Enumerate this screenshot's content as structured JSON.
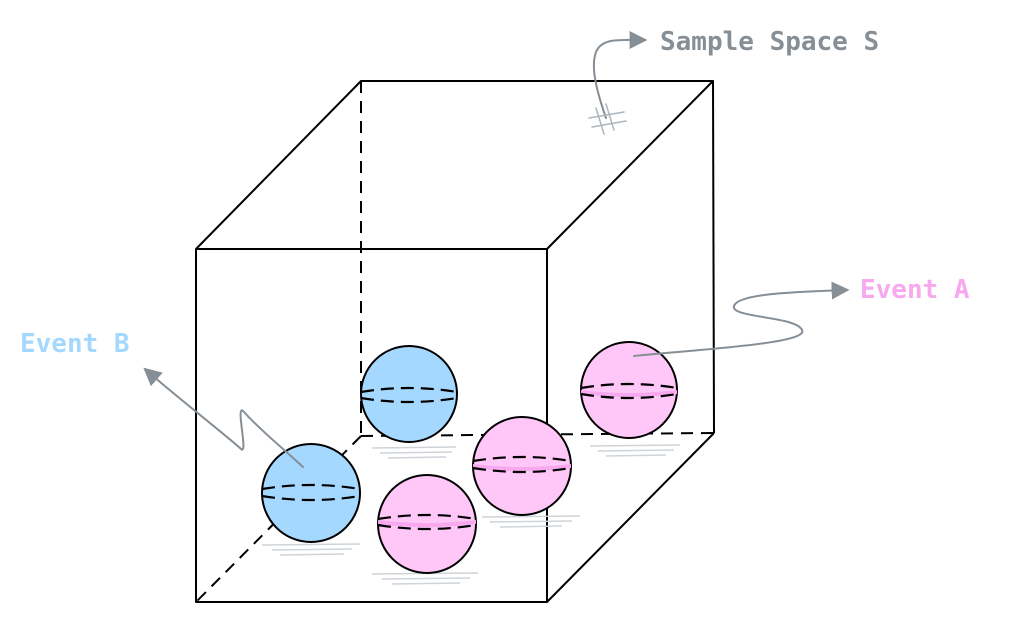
{
  "labels": {
    "sample_space": "Sample Space S",
    "event_a": "Event A",
    "event_b": "Event B"
  },
  "colors": {
    "event_a": "#f7a8ee",
    "event_a_fill": "#ffc6f8",
    "event_b": "#a5d8ff",
    "event_b_fill": "#a5d8ff",
    "annotation": "#868e96",
    "outline": "#000000"
  }
}
